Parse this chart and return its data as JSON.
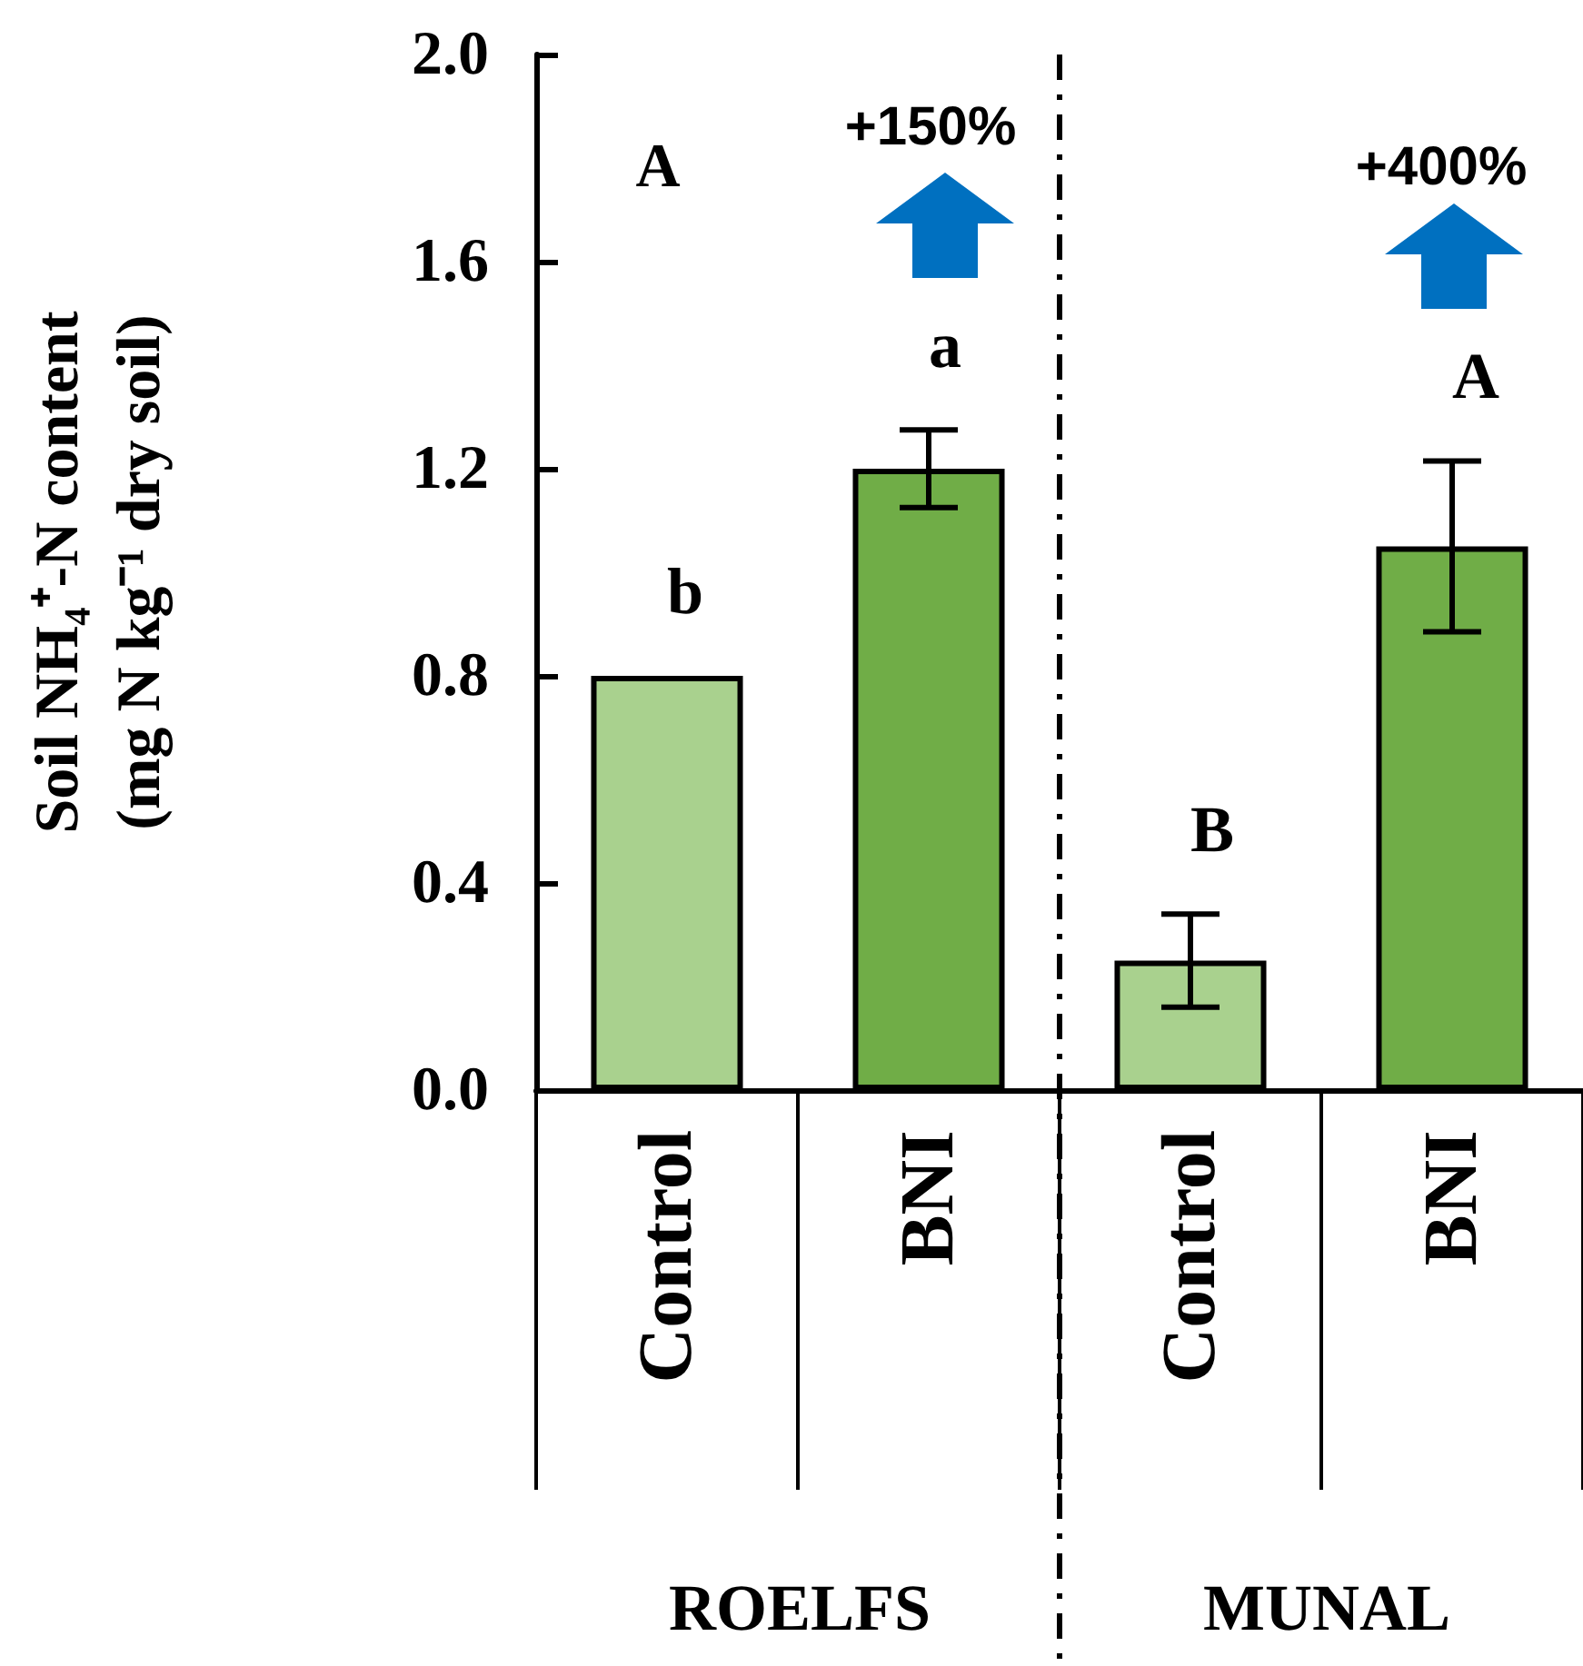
{
  "chart_data": {
    "type": "bar",
    "ylabel": "Soil NH₄⁺-N content\n(mg N kg⁻¹ dry soil)",
    "categories": [
      "Control",
      "BNI",
      "Control",
      "BNI"
    ],
    "values": [
      0.8,
      1.2,
      0.25,
      1.05
    ],
    "colors": [
      "#a9d18e",
      "#70ad47",
      "#a9d18e",
      "#70ad47"
    ],
    "errors": [
      null,
      0.075,
      0.09,
      0.165
    ],
    "value_labels": [
      "b",
      "a",
      "B",
      "A"
    ],
    "ylim": [
      0,
      2
    ],
    "yticks": [
      {
        "value": 0,
        "label": "0.0"
      },
      0.4,
      0.8,
      1.2,
      1.6,
      {
        "value": 2,
        "label": "2.0"
      }
    ],
    "annotations": [
      "A",
      "+150%",
      "+400%",
      "ROELFS",
      "MUNAL"
    ],
    "grid": false
  }
}
